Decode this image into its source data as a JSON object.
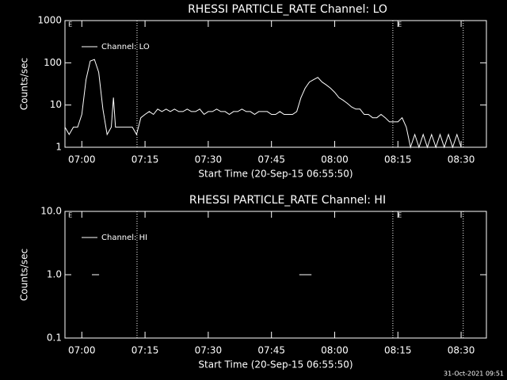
{
  "chart_data": [
    {
      "type": "line",
      "title": "RHESSI PARTICLE_RATE Channel: LO",
      "xlabel": "Start Time (20-Sep-15 06:55:50)",
      "ylabel": "Counts/sec",
      "log_y": true,
      "xlim": [
        416,
        516
      ],
      "ylim": [
        1,
        1000
      ],
      "xticks": [
        {
          "value": 420,
          "label": "07:00"
        },
        {
          "value": 435,
          "label": "07:15"
        },
        {
          "value": 450,
          "label": "07:30"
        },
        {
          "value": 465,
          "label": "07:45"
        },
        {
          "value": 480,
          "label": "08:00"
        },
        {
          "value": 495,
          "label": "08:15"
        },
        {
          "value": 510,
          "label": "08:30"
        }
      ],
      "yticks": [
        1,
        10,
        100,
        1000
      ],
      "vlines": [
        433.1,
        493.8,
        510.5
      ],
      "flags": [
        {
          "x": 416.4,
          "label": "E"
        },
        {
          "x": 494.6,
          "label": "E"
        }
      ],
      "x": [
        416,
        417,
        418,
        419,
        420,
        421,
        422,
        423,
        424,
        425,
        426,
        427,
        427.5,
        428,
        429,
        430,
        431,
        432,
        433,
        434,
        435,
        436,
        437,
        438,
        439,
        440,
        441,
        442,
        443,
        444,
        445,
        446,
        447,
        448,
        449,
        450,
        451,
        452,
        453,
        454,
        455,
        456,
        457,
        458,
        459,
        460,
        461,
        462,
        463,
        464,
        465,
        466,
        467,
        468,
        469,
        470,
        471,
        472,
        473,
        474,
        475,
        476,
        477,
        478,
        479,
        480,
        481,
        482,
        483,
        484,
        485,
        486,
        487,
        488,
        489,
        490,
        491,
        492,
        493,
        494,
        495,
        496,
        497,
        498,
        499,
        500,
        501,
        502,
        503,
        504,
        505,
        506,
        507,
        508,
        509,
        510
      ],
      "series": [
        {
          "name": "Channel: LO",
          "color": "#ffffff",
          "values": [
            3,
            2,
            3,
            3,
            6,
            40,
            110,
            120,
            60,
            8,
            2,
            3,
            15,
            3,
            3,
            3,
            3,
            3,
            2,
            5,
            6,
            7,
            6,
            8,
            7,
            8,
            7,
            8,
            7,
            7,
            8,
            7,
            7,
            8,
            6,
            7,
            7,
            8,
            7,
            7,
            6,
            7,
            7,
            8,
            7,
            7,
            6,
            7,
            7,
            7,
            6,
            6,
            7,
            6,
            6,
            6,
            7,
            15,
            25,
            35,
            40,
            45,
            35,
            30,
            25,
            20,
            15,
            13,
            11,
            9,
            8,
            8,
            6,
            6,
            5,
            5,
            6,
            5,
            4,
            4,
            4,
            5,
            3,
            1,
            2,
            1,
            2,
            1,
            2,
            1,
            2,
            1,
            2,
            1,
            2,
            1
          ]
        }
      ]
    },
    {
      "type": "line",
      "title": "RHESSI PARTICLE_RATE Channel: HI",
      "xlabel": "Start Time (20-Sep-15 06:55:50)",
      "ylabel": "Counts/sec",
      "log_y": true,
      "xlim": [
        416,
        516
      ],
      "ylim": [
        0.1,
        10
      ],
      "xticks": [
        {
          "value": 420,
          "label": "07:00"
        },
        {
          "value": 435,
          "label": "07:15"
        },
        {
          "value": 450,
          "label": "07:30"
        },
        {
          "value": 465,
          "label": "07:45"
        },
        {
          "value": 480,
          "label": "08:00"
        },
        {
          "value": 495,
          "label": "08:15"
        },
        {
          "value": 510,
          "label": "08:30"
        }
      ],
      "yticks": [
        0.1,
        {
          "value": 1,
          "label": "1.0"
        },
        {
          "value": 10,
          "label": "10.0"
        }
      ],
      "vlines": [
        433.1,
        493.8,
        510.5
      ],
      "flags": [
        {
          "x": 416.4,
          "label": "E"
        },
        {
          "x": 494.6,
          "label": "E"
        }
      ],
      "x": [
        422.4,
        424.1,
        null,
        471.6,
        474.5
      ],
      "series": [
        {
          "name": "Channel: HI",
          "color": "#ffffff",
          "values": [
            1,
            1,
            null,
            1,
            1
          ]
        }
      ]
    }
  ],
  "timestamp": "31-Oct-2021 09:51"
}
